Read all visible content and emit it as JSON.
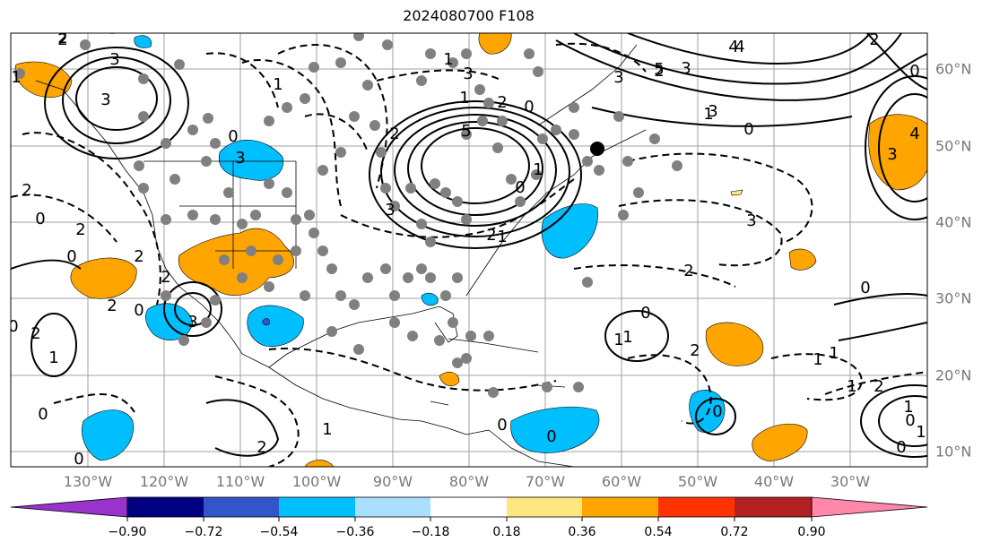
{
  "title": "2024080700 F108",
  "longitude_labels": [
    "130°W",
    "120°W",
    "110°W",
    "100°W",
    "90°W",
    "80°W",
    "70°W",
    "60°W",
    "50°W",
    "40°W",
    "30°W"
  ],
  "latitude_labels": [
    "60°N",
    "50°N",
    "40°N",
    "30°N",
    "20°N",
    "10°N"
  ],
  "colorbar": {
    "ticks": [
      "−0.90",
      "−0.72",
      "−0.54",
      "−0.36",
      "−0.18",
      "0.18",
      "0.36",
      "0.54",
      "0.72",
      "0.90"
    ],
    "colors": [
      "#9933cc",
      "#000080",
      "#3355cc",
      "#00bfff",
      "#aadfff",
      "#ffffff",
      "#ffe680",
      "#ffa500",
      "#ff3300",
      "#b22222",
      "#ff88aa"
    ],
    "extend": "both"
  },
  "contour_labels": [
    "2",
    "3",
    "2",
    "3",
    "2",
    "0",
    "0",
    "2",
    "5",
    "3",
    "2",
    "0",
    "3",
    "0",
    "1",
    "4",
    "2",
    "3",
    "4",
    "3",
    "0",
    "2",
    "0",
    "1",
    "1",
    "2",
    "1",
    "0",
    "3",
    "5",
    "4",
    "2",
    "1",
    "0",
    "2",
    "3",
    "3",
    "0",
    "2",
    "3",
    "2",
    "2",
    "1",
    "2",
    "1",
    "1",
    "0",
    "2",
    "3",
    "1",
    "0",
    "0",
    "1",
    "1",
    "0",
    "0",
    "2",
    "1",
    "0",
    "1",
    "2",
    "0",
    "1",
    "0",
    "0",
    "1",
    "1"
  ]
}
